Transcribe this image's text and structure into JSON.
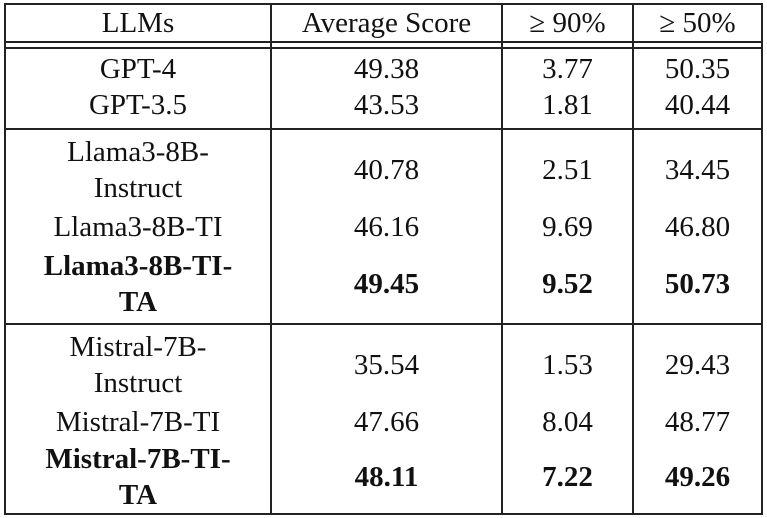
{
  "header": {
    "col_llms": "LLMs",
    "col_avg": "Average Score",
    "col_90": "≥ 90%",
    "col_50": "≥ 50%"
  },
  "groups": [
    {
      "rows": [
        {
          "model": "GPT-4",
          "avg": "49.38",
          "p90": "3.77",
          "p50": "50.35",
          "bold": false
        },
        {
          "model": "GPT-3.5",
          "avg": "43.53",
          "p90": "1.81",
          "p50": "40.44",
          "bold": false
        }
      ]
    },
    {
      "rows": [
        {
          "model": "Llama3-8B-Instruct",
          "model_lines": [
            "Llama3-8B-",
            "Instruct"
          ],
          "avg": "40.78",
          "p90": "2.51",
          "p50": "34.45",
          "bold": false
        },
        {
          "model": "Llama3-8B-TI",
          "avg": "46.16",
          "p90": "9.69",
          "p50": "46.80",
          "bold": false
        },
        {
          "model": "Llama3-8B-TI-TA",
          "model_lines": [
            "Llama3-8B-TI-",
            "TA"
          ],
          "avg": "49.45",
          "p90": "9.52",
          "p50": "50.73",
          "bold": true
        }
      ]
    },
    {
      "rows": [
        {
          "model": "Mistral-7B-Instruct",
          "model_lines": [
            "Mistral-7B-",
            "Instruct"
          ],
          "avg": "35.54",
          "p90": "1.53",
          "p50": "29.43",
          "bold": false
        },
        {
          "model": "Mistral-7B-TI",
          "avg": "47.66",
          "p90": "8.04",
          "p50": "48.77",
          "bold": false
        },
        {
          "model": "Mistral-7B-TI-TA",
          "model_lines": [
            "Mistral-7B-TI-",
            "TA"
          ],
          "avg": "48.11",
          "p90": "7.22",
          "p50": "49.26",
          "bold": true
        }
      ]
    }
  ]
}
